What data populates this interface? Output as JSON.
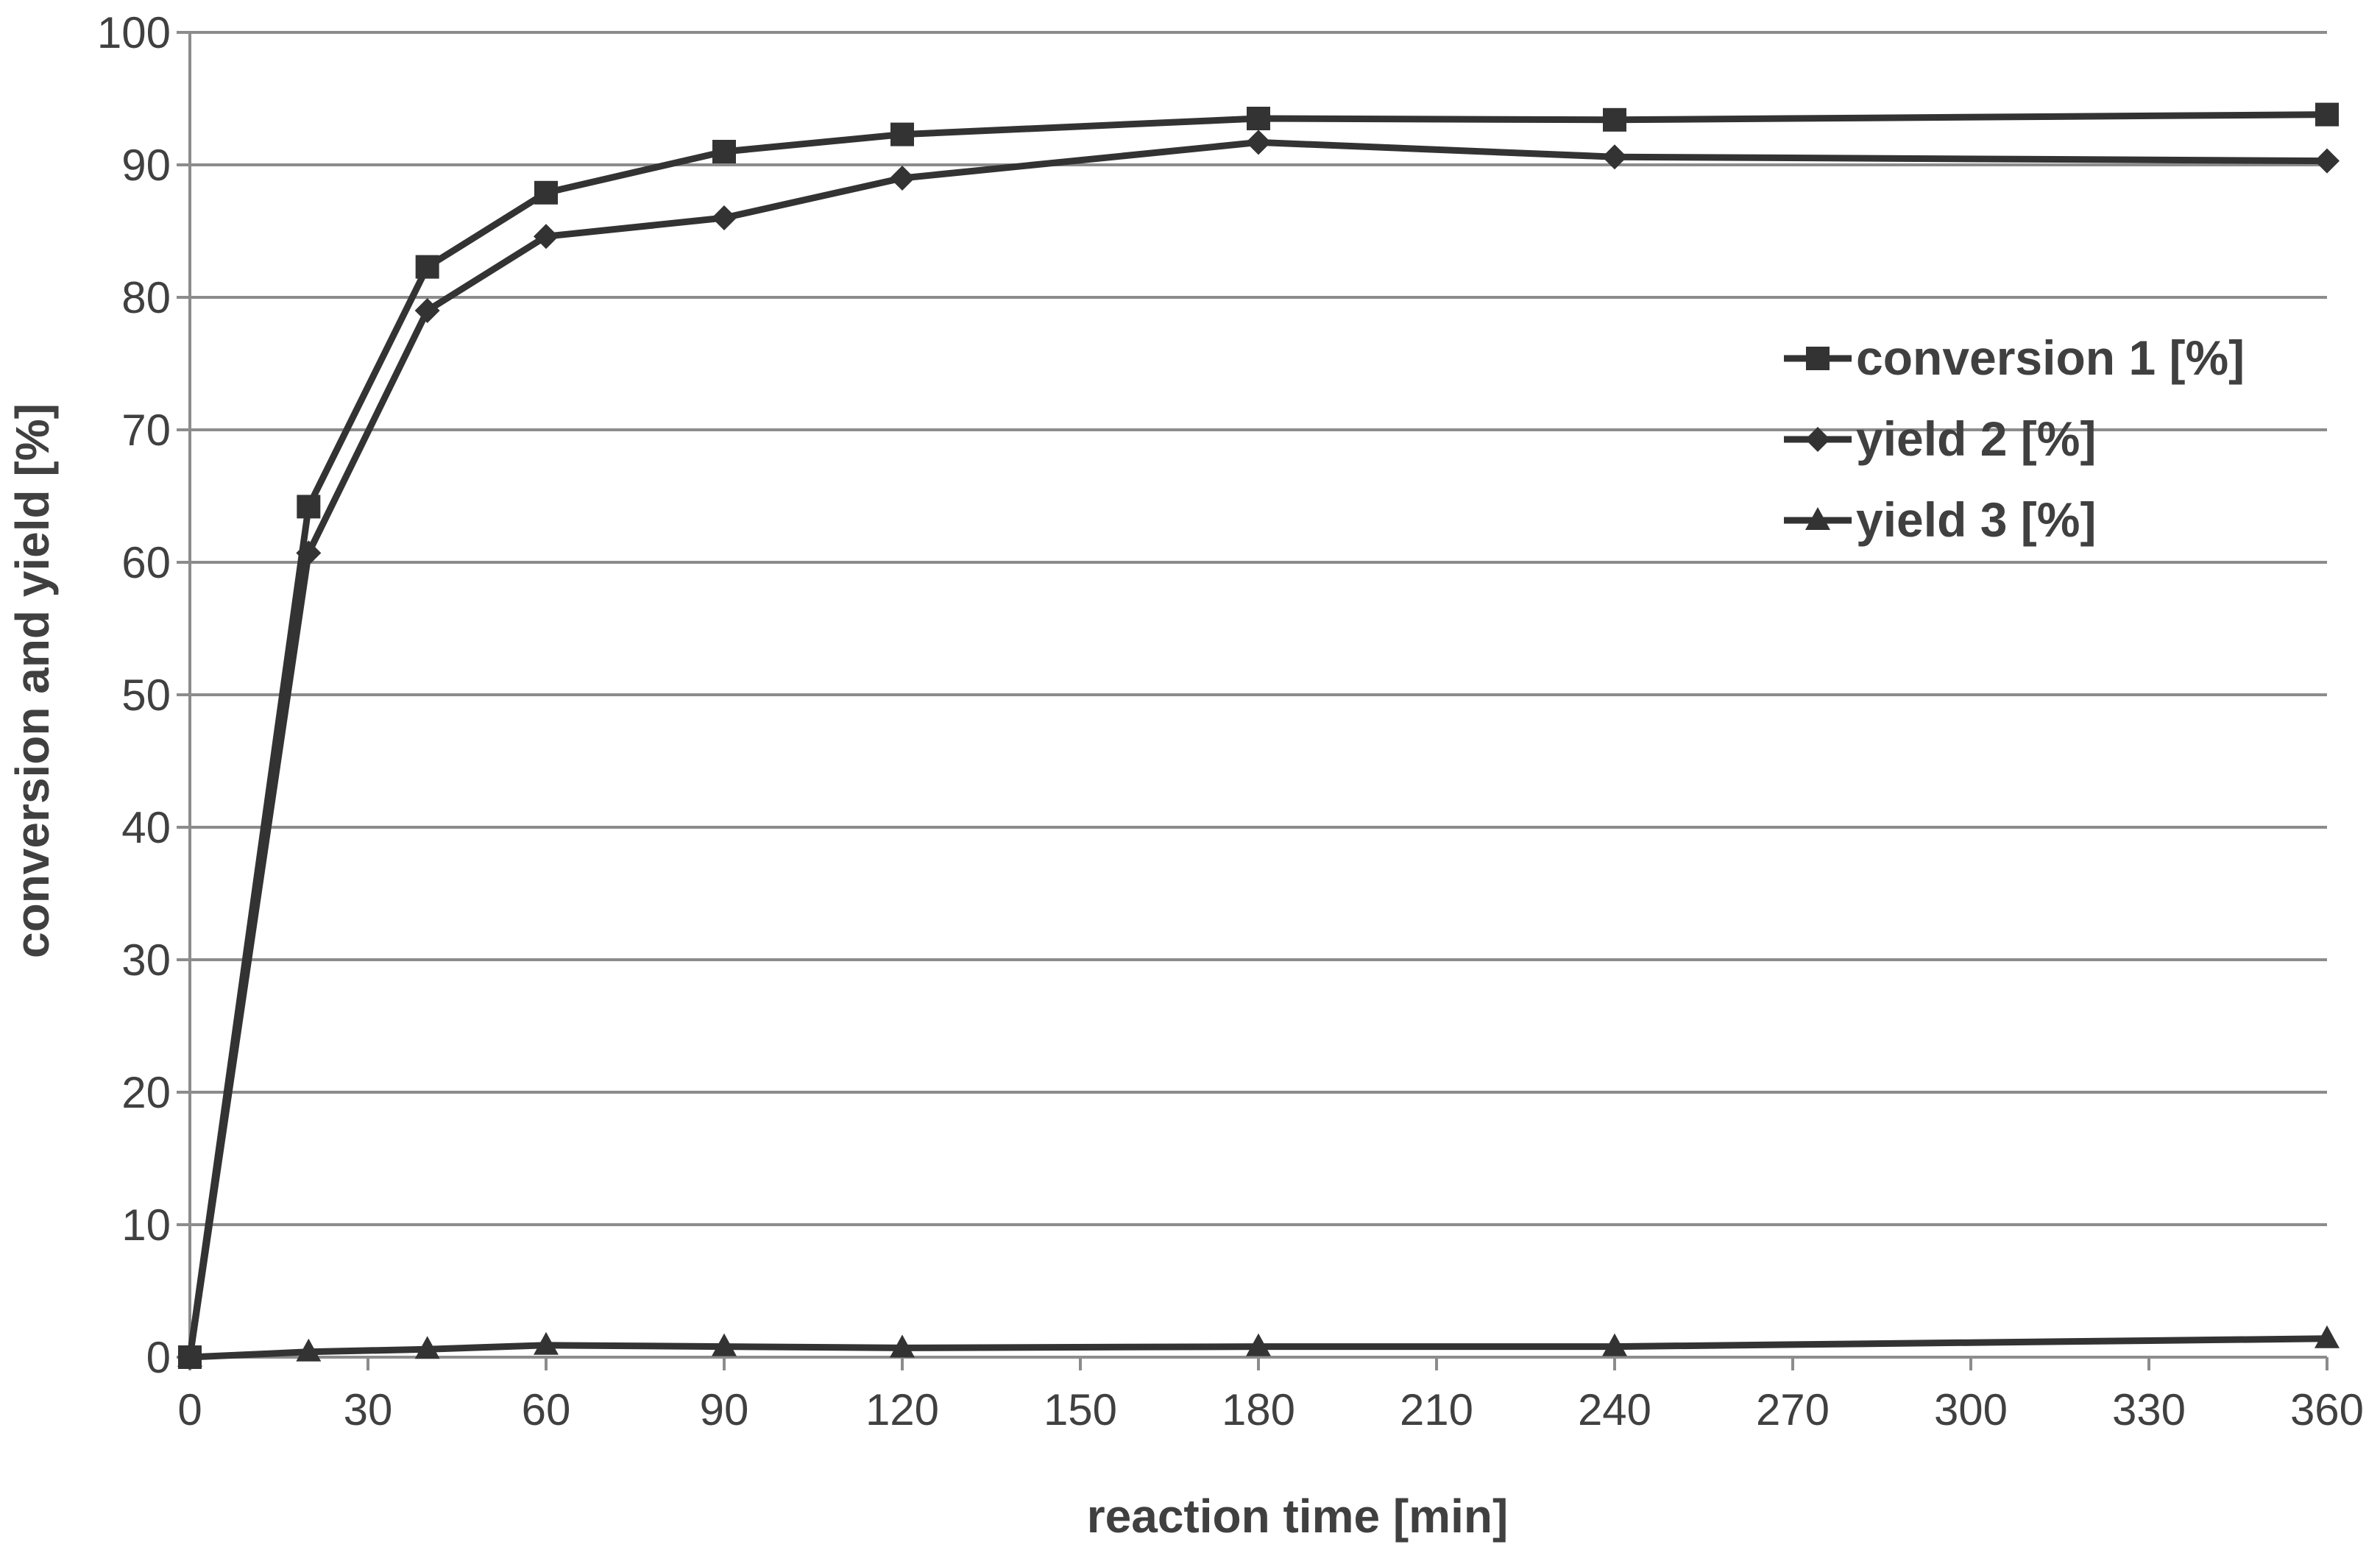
{
  "chart_data": {
    "type": "line",
    "title": "",
    "xlabel": "reaction time [min]",
    "ylabel": "conversion and yield [%]",
    "xlim": [
      0,
      360
    ],
    "ylim": [
      0,
      100
    ],
    "xticks": [
      0,
      30,
      60,
      90,
      120,
      150,
      180,
      210,
      240,
      270,
      300,
      330,
      360
    ],
    "yticks": [
      0,
      10,
      20,
      30,
      40,
      50,
      60,
      70,
      80,
      90,
      100
    ],
    "grid": "horizontal",
    "legend_position": "right",
    "x": [
      0,
      20,
      40,
      60,
      90,
      120,
      180,
      240,
      360
    ],
    "series": [
      {
        "name": "conversion 1 [%]",
        "marker": "square",
        "values": [
          0,
          64.2,
          82.3,
          87.9,
          91.0,
          92.3,
          93.5,
          93.4,
          93.8
        ]
      },
      {
        "name": "yield 2 [%]",
        "marker": "diamond",
        "values": [
          0,
          60.7,
          79.0,
          84.6,
          86.0,
          89.0,
          91.7,
          90.6,
          90.3
        ]
      },
      {
        "name": "yield 3 [%]",
        "marker": "triangle",
        "values": [
          0,
          0.4,
          0.6,
          0.9,
          0.8,
          0.7,
          0.8,
          0.8,
          1.4
        ]
      }
    ],
    "colors": {
      "series": "#333333",
      "grid": "#8c8c8c",
      "text": "#404040"
    }
  }
}
